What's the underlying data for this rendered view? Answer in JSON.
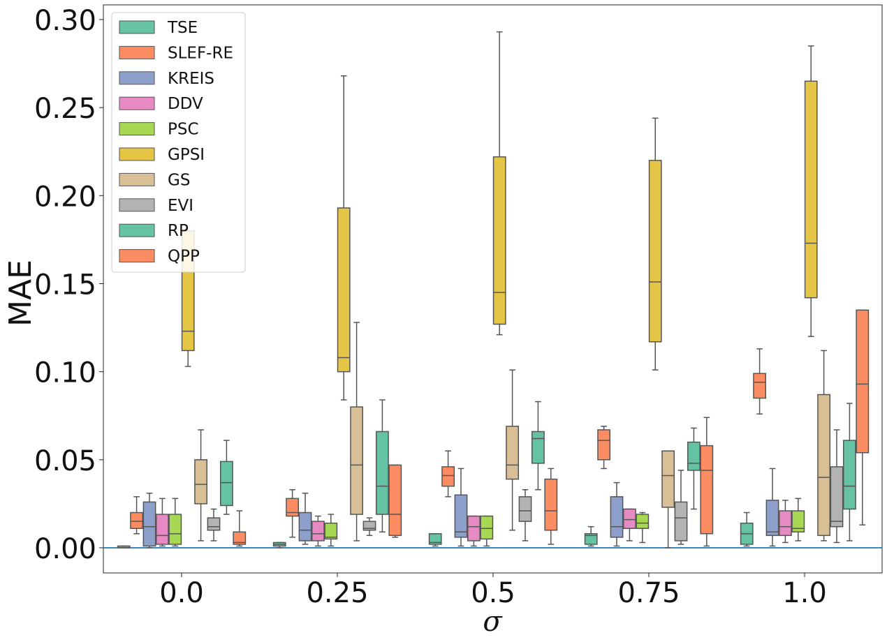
{
  "chart_data": {
    "type": "boxplot",
    "title": "",
    "xlabel": "σ",
    "ylabel": "MAE",
    "categories": [
      "0.0",
      "0.25",
      "0.5",
      "0.75",
      "1.0"
    ],
    "ylim": [
      -0.015,
      0.31
    ],
    "yticks": [
      0.0,
      0.05,
      0.1,
      0.15,
      0.2,
      0.25,
      0.3
    ],
    "ytick_labels": [
      "0.00",
      "0.05",
      "0.10",
      "0.15",
      "0.20",
      "0.25",
      "0.30"
    ],
    "reference_line": {
      "y": 0.0,
      "color": "#1f77b4"
    },
    "legend_position": "top-left",
    "series": [
      {
        "name": "TSE",
        "color": "#66c2a5",
        "boxes": [
          {
            "wl": 0.0,
            "q1": 0.0,
            "med": 0.0,
            "q3": 0.001,
            "wh": 0.001
          },
          {
            "wl": 0.0,
            "q1": 0.001,
            "med": 0.002,
            "q3": 0.003,
            "wh": 0.003
          },
          {
            "wl": 0.001,
            "q1": 0.002,
            "med": 0.003,
            "q3": 0.008,
            "wh": 0.008
          },
          {
            "wl": 0.001,
            "q1": 0.002,
            "med": 0.007,
            "q3": 0.008,
            "wh": 0.012
          },
          {
            "wl": 0.001,
            "q1": 0.002,
            "med": 0.008,
            "q3": 0.014,
            "wh": 0.02
          }
        ]
      },
      {
        "name": "SLEF-RE",
        "color": "#fc8d62",
        "boxes": [
          {
            "wl": 0.008,
            "q1": 0.011,
            "med": 0.015,
            "q3": 0.02,
            "wh": 0.029
          },
          {
            "wl": 0.006,
            "q1": 0.018,
            "med": 0.02,
            "q3": 0.028,
            "wh": 0.033
          },
          {
            "wl": 0.029,
            "q1": 0.035,
            "med": 0.041,
            "q3": 0.046,
            "wh": 0.055
          },
          {
            "wl": 0.045,
            "q1": 0.05,
            "med": 0.061,
            "q3": 0.067,
            "wh": 0.069
          },
          {
            "wl": 0.076,
            "q1": 0.085,
            "med": 0.094,
            "q3": 0.099,
            "wh": 0.113
          }
        ]
      },
      {
        "name": "KREIS",
        "color": "#8da0cb",
        "boxes": [
          {
            "wl": 0.0,
            "q1": 0.001,
            "med": 0.012,
            "q3": 0.026,
            "wh": 0.031
          },
          {
            "wl": 0.002,
            "q1": 0.004,
            "med": 0.01,
            "q3": 0.02,
            "wh": 0.031
          },
          {
            "wl": 0.001,
            "q1": 0.006,
            "med": 0.009,
            "q3": 0.03,
            "wh": 0.045
          },
          {
            "wl": 0.001,
            "q1": 0.006,
            "med": 0.012,
            "q3": 0.029,
            "wh": 0.037
          },
          {
            "wl": 0.001,
            "q1": 0.007,
            "med": 0.009,
            "q3": 0.027,
            "wh": 0.045
          }
        ]
      },
      {
        "name": "DDV",
        "color": "#e78ac3",
        "boxes": [
          {
            "wl": 0.001,
            "q1": 0.002,
            "med": 0.007,
            "q3": 0.019,
            "wh": 0.028
          },
          {
            "wl": 0.001,
            "q1": 0.004,
            "med": 0.008,
            "q3": 0.015,
            "wh": 0.018
          },
          {
            "wl": 0.001,
            "q1": 0.004,
            "med": 0.012,
            "q3": 0.018,
            "wh": 0.018
          },
          {
            "wl": 0.004,
            "q1": 0.011,
            "med": 0.016,
            "q3": 0.022,
            "wh": 0.022
          },
          {
            "wl": 0.003,
            "q1": 0.007,
            "med": 0.012,
            "q3": 0.021,
            "wh": 0.027
          }
        ]
      },
      {
        "name": "PSC",
        "color": "#a6d854",
        "boxes": [
          {
            "wl": 0.001,
            "q1": 0.002,
            "med": 0.008,
            "q3": 0.019,
            "wh": 0.028
          },
          {
            "wl": 0.001,
            "q1": 0.005,
            "med": 0.006,
            "q3": 0.014,
            "wh": 0.019
          },
          {
            "wl": 0.001,
            "q1": 0.005,
            "med": 0.011,
            "q3": 0.018,
            "wh": 0.018
          },
          {
            "wl": 0.003,
            "q1": 0.011,
            "med": 0.014,
            "q3": 0.019,
            "wh": 0.02
          },
          {
            "wl": 0.004,
            "q1": 0.009,
            "med": 0.011,
            "q3": 0.021,
            "wh": 0.028
          }
        ]
      },
      {
        "name": "GPSI",
        "color": "#e5c545",
        "boxes": [
          {
            "wl": 0.103,
            "q1": 0.112,
            "med": 0.123,
            "q3": 0.18,
            "wh": 0.18
          },
          {
            "wl": 0.084,
            "q1": 0.1,
            "med": 0.108,
            "q3": 0.193,
            "wh": 0.268
          },
          {
            "wl": 0.121,
            "q1": 0.127,
            "med": 0.145,
            "q3": 0.222,
            "wh": 0.293
          },
          {
            "wl": 0.101,
            "q1": 0.117,
            "med": 0.151,
            "q3": 0.22,
            "wh": 0.244
          },
          {
            "wl": 0.12,
            "q1": 0.142,
            "med": 0.173,
            "q3": 0.265,
            "wh": 0.285
          }
        ]
      },
      {
        "name": "GS",
        "color": "#d9bf96",
        "boxes": [
          {
            "wl": 0.004,
            "q1": 0.025,
            "med": 0.036,
            "q3": 0.05,
            "wh": 0.067
          },
          {
            "wl": 0.004,
            "q1": 0.019,
            "med": 0.047,
            "q3": 0.08,
            "wh": 0.128
          },
          {
            "wl": 0.01,
            "q1": 0.039,
            "med": 0.047,
            "q3": 0.069,
            "wh": 0.101
          },
          {
            "wl": 0.0,
            "q1": 0.023,
            "med": 0.041,
            "q3": 0.055,
            "wh": 0.055
          },
          {
            "wl": 0.004,
            "q1": 0.007,
            "med": 0.04,
            "q3": 0.087,
            "wh": 0.112
          }
        ]
      },
      {
        "name": "EVI",
        "color": "#b3b3b3",
        "boxes": [
          {
            "wl": 0.004,
            "q1": 0.01,
            "med": 0.012,
            "q3": 0.017,
            "wh": 0.022
          },
          {
            "wl": 0.007,
            "q1": 0.01,
            "med": 0.011,
            "q3": 0.015,
            "wh": 0.017
          },
          {
            "wl": 0.004,
            "q1": 0.015,
            "med": 0.021,
            "q3": 0.029,
            "wh": 0.033
          },
          {
            "wl": 0.002,
            "q1": 0.004,
            "med": 0.017,
            "q3": 0.026,
            "wh": 0.044
          },
          {
            "wl": 0.003,
            "q1": 0.012,
            "med": 0.015,
            "q3": 0.046,
            "wh": 0.067
          }
        ]
      },
      {
        "name": "RP",
        "color": "#66c2a5",
        "boxes": [
          {
            "wl": 0.019,
            "q1": 0.024,
            "med": 0.037,
            "q3": 0.049,
            "wh": 0.061
          },
          {
            "wl": 0.009,
            "q1": 0.019,
            "med": 0.035,
            "q3": 0.066,
            "wh": 0.084
          },
          {
            "wl": 0.033,
            "q1": 0.048,
            "med": 0.062,
            "q3": 0.066,
            "wh": 0.083
          },
          {
            "wl": 0.022,
            "q1": 0.044,
            "med": 0.048,
            "q3": 0.06,
            "wh": 0.068
          },
          {
            "wl": 0.004,
            "q1": 0.022,
            "med": 0.035,
            "q3": 0.061,
            "wh": 0.082
          }
        ]
      },
      {
        "name": "QPP",
        "color": "#fc8d62",
        "boxes": [
          {
            "wl": 0.001,
            "q1": 0.002,
            "med": 0.003,
            "q3": 0.009,
            "wh": 0.021
          },
          {
            "wl": 0.006,
            "q1": 0.007,
            "med": 0.019,
            "q3": 0.047,
            "wh": 0.047
          },
          {
            "wl": 0.002,
            "q1": 0.01,
            "med": 0.021,
            "q3": 0.039,
            "wh": 0.045
          },
          {
            "wl": 0.001,
            "q1": 0.008,
            "med": 0.044,
            "q3": 0.058,
            "wh": 0.074
          },
          {
            "wl": 0.013,
            "q1": 0.054,
            "med": 0.093,
            "q3": 0.135,
            "wh": 0.135
          }
        ]
      }
    ]
  }
}
